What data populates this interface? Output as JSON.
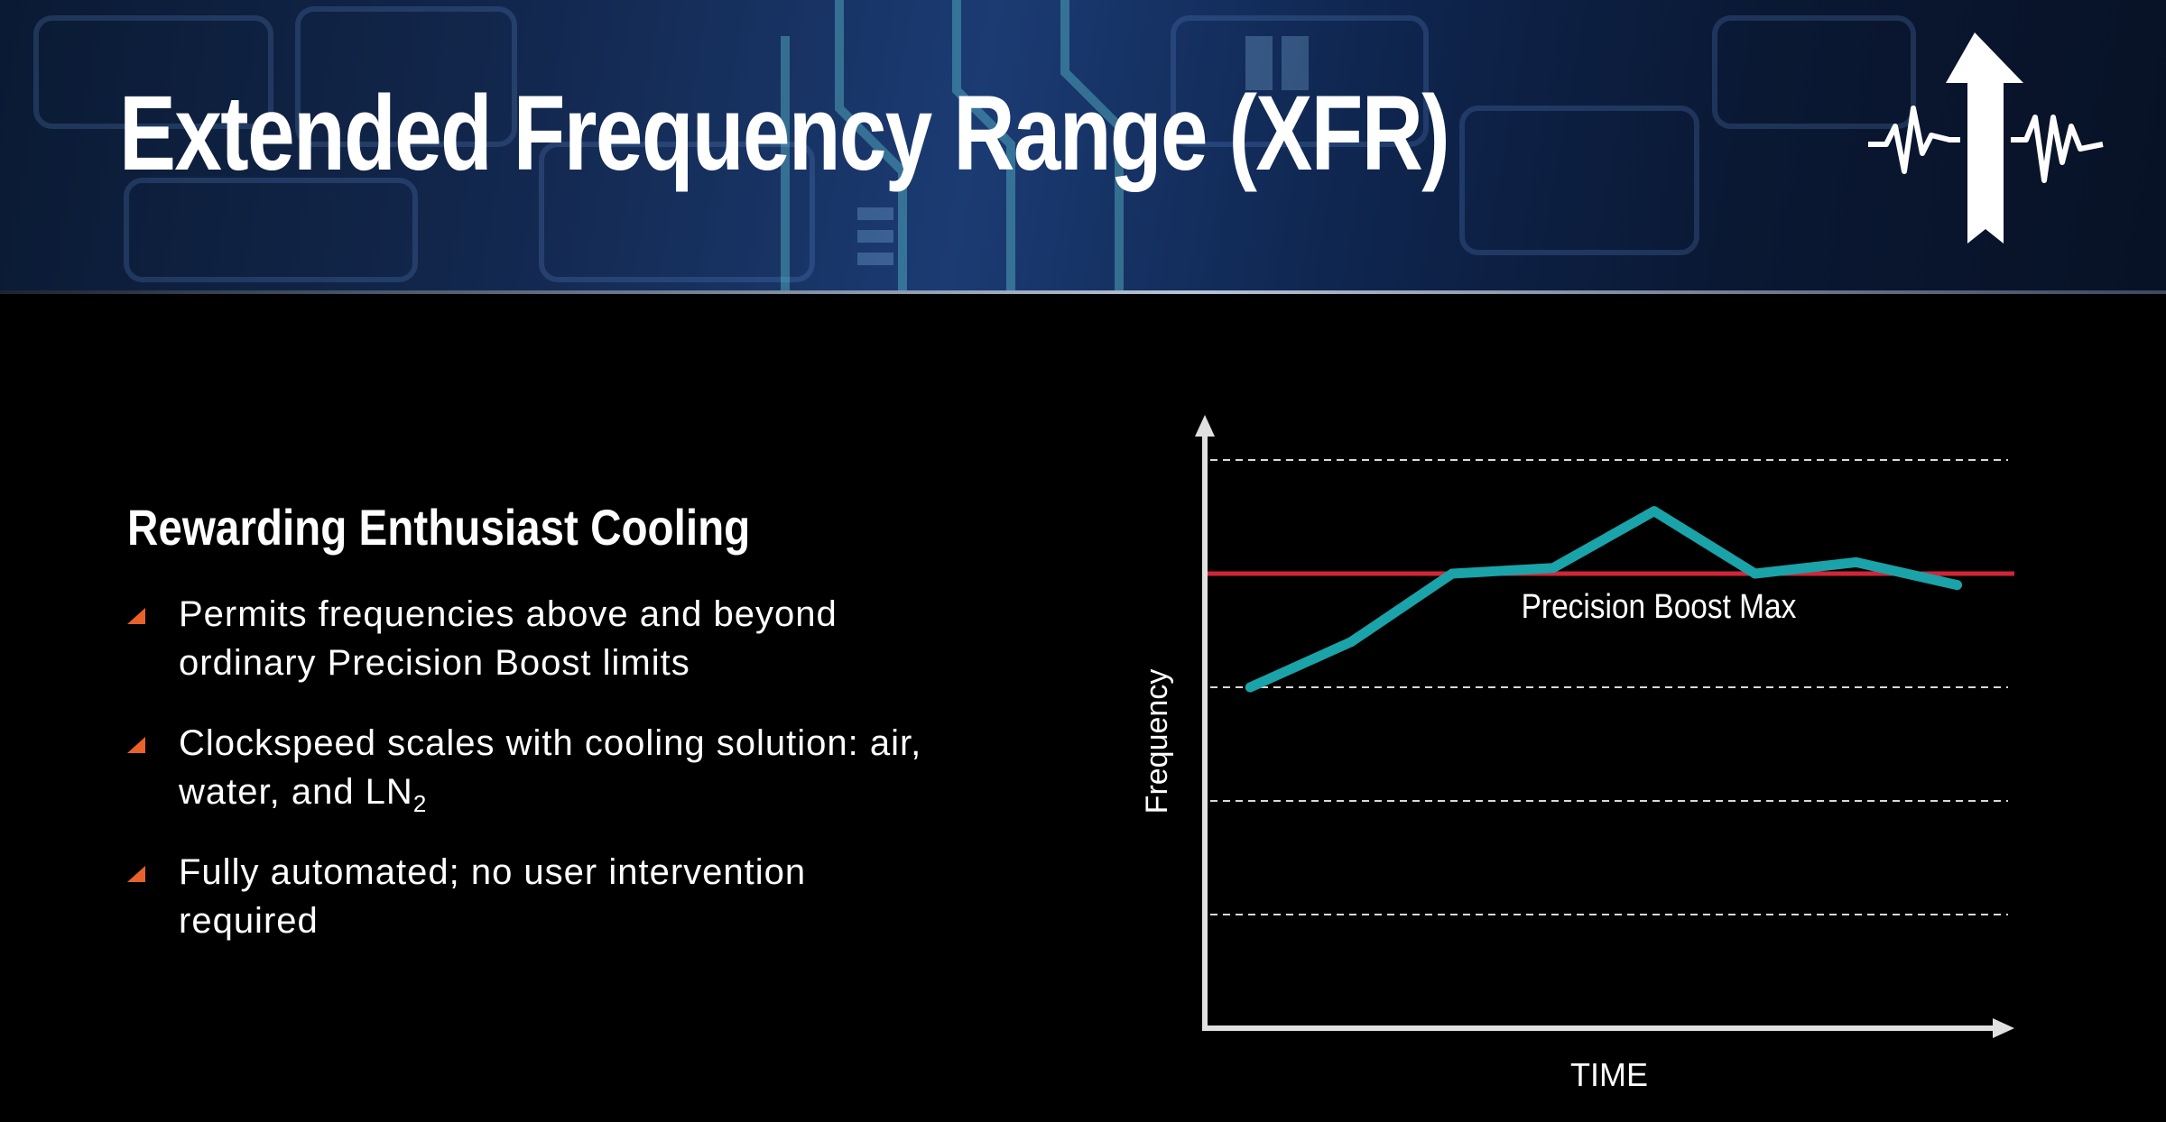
{
  "slide": {
    "title": "Extended Frequency Range (XFR)",
    "subtitle": "Rewarding Enthusiast Cooling",
    "bullets": [
      {
        "line1": "Permits frequencies above and beyond",
        "line2": "ordinary Precision Boost limits"
      },
      {
        "line1": "Clockspeed scales with cooling solution: air,",
        "line2_prefix": "water, and LN",
        "line2_sub": "2"
      },
      {
        "line1": "Fully automated; no user intervention",
        "line2": "required"
      }
    ]
  },
  "colors": {
    "bullet_marker": "#e8622a",
    "series_line": "#1aa3a8",
    "reference_line": "#d22638",
    "axes": "#e0e0e0",
    "grid": "#ffffff"
  },
  "icons": {
    "logo": "frequency-boost-arrow-icon",
    "bullet": "triangle-bullet-icon"
  },
  "chart_data": {
    "type": "line",
    "xlabel": "TIME",
    "ylabel": "Frequency",
    "xlim": [
      0,
      8
    ],
    "ylim": [
      0,
      10
    ],
    "grid": true,
    "gridlines_y": [
      2,
      4,
      6,
      10
    ],
    "series": [
      {
        "x": [
          0.45,
          1.45,
          2.45,
          3.45,
          4.45,
          5.45,
          6.45,
          7.45
        ],
        "y": [
          6.0,
          6.8,
          8.0,
          8.1,
          9.1,
          8.0,
          8.2,
          7.8
        ]
      }
    ],
    "reference_line": {
      "y": 8.0,
      "label": "Precision Boost Max"
    }
  }
}
